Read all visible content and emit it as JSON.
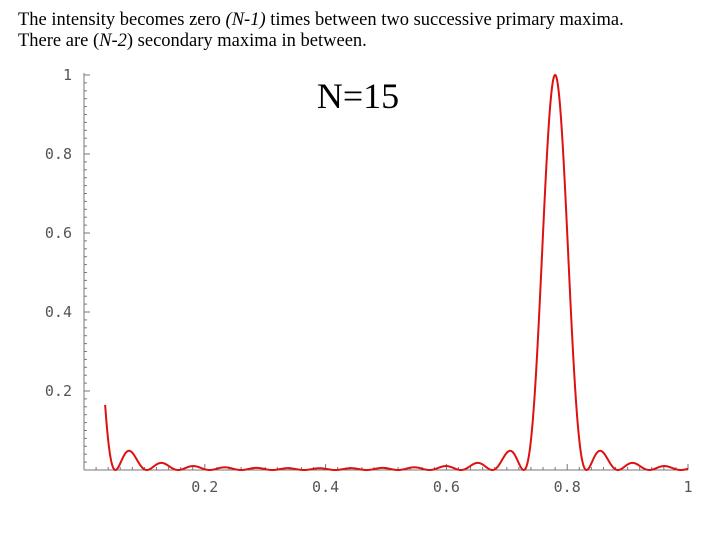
{
  "caption": {
    "line1": {
      "prefix": "The intensity becomes zero ",
      "emph": "(N-1)",
      "suffix": " times between two successive primary maxima."
    },
    "line2": {
      "prefix": "There are (",
      "emph": "N-2",
      "suffix": ") secondary maxima in between."
    }
  },
  "colors": {
    "curve": "#dd1111",
    "axis": "#777777",
    "tick_text": "#555555"
  },
  "chart_data": {
    "type": "line",
    "title": "N=15",
    "xlabel": "",
    "ylabel": "",
    "xlim": [
      0,
      1
    ],
    "ylim": [
      0,
      1
    ],
    "grid": false,
    "x_ticks": [
      0.2,
      0.4,
      0.6,
      0.8,
      1
    ],
    "x_tick_labels": [
      "0.2",
      "0.4",
      "0.6",
      "0.8",
      "1"
    ],
    "y_ticks": [
      0.2,
      0.4,
      0.6,
      0.8,
      1
    ],
    "y_tick_labels": [
      "0.2",
      "0.4",
      "0.6",
      "0.8",
      "1"
    ],
    "series": [
      {
        "function": "(sin(N*pi*x/d)/(N*sin(pi*x/d)))^2",
        "N": 15,
        "d": 0.78,
        "x_range": [
          0.035,
          1.0
        ]
      }
    ]
  }
}
